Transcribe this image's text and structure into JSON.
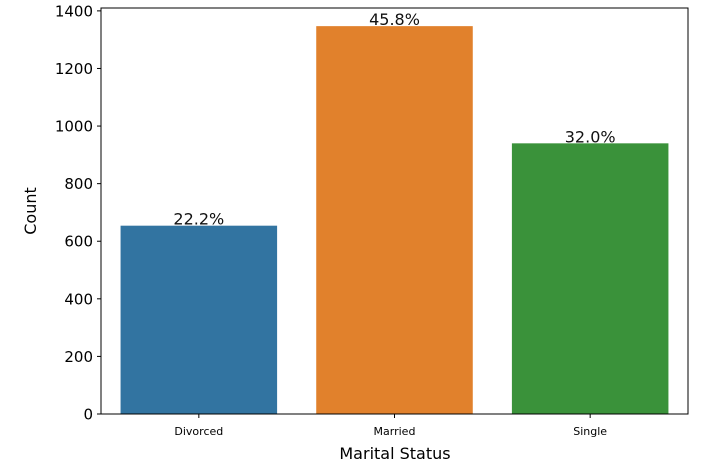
{
  "chart_data": {
    "type": "bar",
    "title": "",
    "xlabel": "Marital Status",
    "ylabel": "Count",
    "categories": [
      "Divorced",
      "Married",
      "Single"
    ],
    "values": [
      654,
      1347,
      940
    ],
    "annotations": [
      "22.2%",
      "45.8%",
      "32.0%"
    ],
    "ylim": [
      0,
      1410
    ],
    "yticks": [
      0,
      200,
      400,
      600,
      800,
      1000,
      1200,
      1400
    ],
    "ytick_labels": [
      "0",
      "200",
      "400",
      "600",
      "800",
      "1000",
      "1200",
      "1400"
    ],
    "grid": false,
    "legend": "none",
    "colors": [
      "#3274a1",
      "#e1812c",
      "#3a923a"
    ]
  }
}
